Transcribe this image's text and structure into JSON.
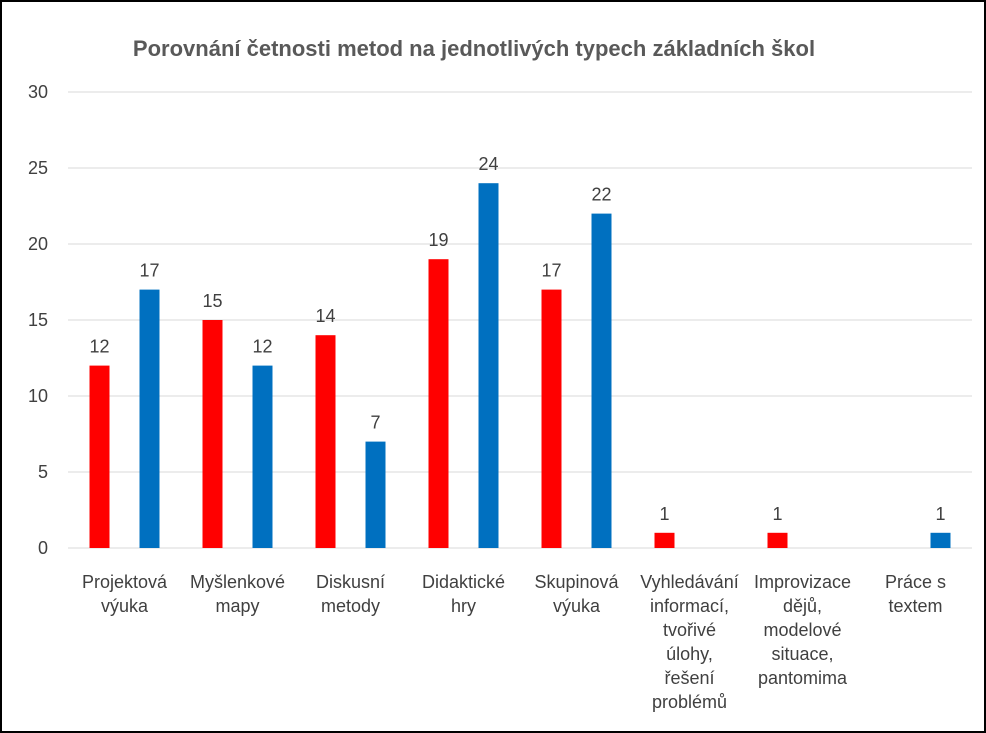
{
  "chart_data": {
    "type": "bar",
    "title": "Porovnání četnosti metod na jednotlivých typech základních škol",
    "xlabel": "",
    "ylabel": "",
    "ylim": [
      0,
      30
    ],
    "yticks": [
      0,
      5,
      10,
      15,
      20,
      25,
      30
    ],
    "grid": true,
    "legend": "none",
    "categories": [
      [
        "Projektová",
        "výuka"
      ],
      [
        "Myšlenkové",
        "mapy"
      ],
      [
        "Diskusní",
        "metody"
      ],
      [
        "Didaktické",
        "hry"
      ],
      [
        "Skupinová",
        "výuka"
      ],
      [
        "Vyhledávání",
        "informací,",
        "tvořivé",
        "úlohy,",
        "řešení",
        "problémů"
      ],
      [
        "Improvizace",
        "dějů,",
        "modelové",
        "situace,",
        "pantomima"
      ],
      [
        "Práce s",
        "textem"
      ]
    ],
    "series": [
      {
        "color": "#ff0000",
        "values": [
          12,
          15,
          14,
          19,
          17,
          1,
          1,
          null
        ]
      },
      {
        "color": "#0070c0",
        "values": [
          17,
          12,
          7,
          24,
          22,
          null,
          null,
          1
        ]
      }
    ]
  }
}
